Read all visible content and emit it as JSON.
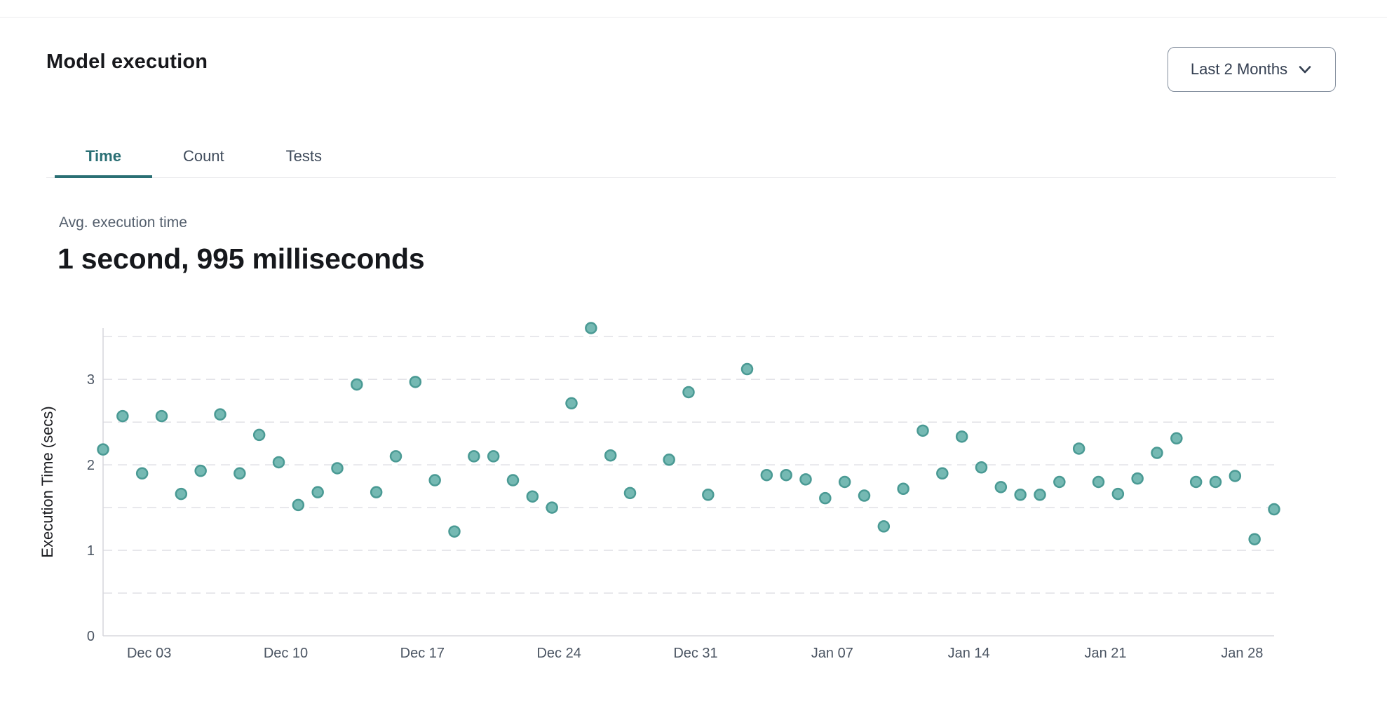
{
  "page": {
    "title": "Model execution"
  },
  "range_selector": {
    "label": "Last 2 Months",
    "icon": "chevron-down-icon"
  },
  "tabs": [
    {
      "label": "Time",
      "active": true
    },
    {
      "label": "Count",
      "active": false
    },
    {
      "label": "Tests",
      "active": false
    }
  ],
  "metric": {
    "label": "Avg. execution time",
    "value": "1 second, 995 milliseconds"
  },
  "chart_data": {
    "type": "scatter",
    "title": "",
    "xlabel": "",
    "ylabel": "Execution Time (secs)",
    "ylim": [
      0,
      3.6
    ],
    "ytick_values": [
      0,
      1,
      2,
      3
    ],
    "grid_step": 0.5,
    "grid": "dashed horizontal",
    "legend": "none",
    "x_total_days": 61,
    "xtick_labels": [
      "Dec 03",
      "Dec 10",
      "Dec 17",
      "Dec 24",
      "Dec 31",
      "Jan 07",
      "Jan 14",
      "Jan 21",
      "Jan 28"
    ],
    "xtick_day_indices": [
      2,
      9,
      16,
      23,
      30,
      37,
      44,
      51,
      58
    ],
    "colors": {
      "dot_fill": "#75b9b3",
      "dot_stroke": "#4a9a94",
      "grid": "#e3e3e8",
      "axis": "#d8d8dd",
      "tick_text": "#4a5462",
      "axis_title_text": "#1b1c20"
    },
    "points": [
      {
        "date": "Dec 01",
        "day_index": 0,
        "value": 2.18
      },
      {
        "date": "Dec 02",
        "day_index": 1,
        "value": 2.57
      },
      {
        "date": "Dec 03",
        "day_index": 2,
        "value": 1.9
      },
      {
        "date": "Dec 04",
        "day_index": 3,
        "value": 2.57
      },
      {
        "date": "Dec 05",
        "day_index": 4,
        "value": 1.66
      },
      {
        "date": "Dec 06",
        "day_index": 5,
        "value": 1.93
      },
      {
        "date": "Dec 07",
        "day_index": 6,
        "value": 2.59
      },
      {
        "date": "Dec 08",
        "day_index": 7,
        "value": 1.9
      },
      {
        "date": "Dec 09",
        "day_index": 8,
        "value": 2.35
      },
      {
        "date": "Dec 10",
        "day_index": 9,
        "value": 2.03
      },
      {
        "date": "Dec 11",
        "day_index": 10,
        "value": 1.53
      },
      {
        "date": "Dec 12",
        "day_index": 11,
        "value": 1.68
      },
      {
        "date": "Dec 13",
        "day_index": 12,
        "value": 1.96
      },
      {
        "date": "Dec 14",
        "day_index": 13,
        "value": 2.94
      },
      {
        "date": "Dec 15",
        "day_index": 14,
        "value": 1.68
      },
      {
        "date": "Dec 16",
        "day_index": 15,
        "value": 2.1
      },
      {
        "date": "Dec 17",
        "day_index": 16,
        "value": 2.97
      },
      {
        "date": "Dec 18",
        "day_index": 17,
        "value": 1.82
      },
      {
        "date": "Dec 19",
        "day_index": 18,
        "value": 1.22
      },
      {
        "date": "Dec 20",
        "day_index": 19,
        "value": 2.1
      },
      {
        "date": "Dec 21",
        "day_index": 20,
        "value": 2.1
      },
      {
        "date": "Dec 22",
        "day_index": 21,
        "value": 1.82
      },
      {
        "date": "Dec 23",
        "day_index": 22,
        "value": 1.63
      },
      {
        "date": "Dec 24",
        "day_index": 23,
        "value": 1.5
      },
      {
        "date": "Dec 25",
        "day_index": 24,
        "value": 2.72
      },
      {
        "date": "Dec 26",
        "day_index": 25,
        "value": 3.6
      },
      {
        "date": "Dec 27",
        "day_index": 26,
        "value": 2.11
      },
      {
        "date": "Dec 28",
        "day_index": 27,
        "value": 1.67
      },
      {
        "date": "Dec 30",
        "day_index": 29,
        "value": 2.06
      },
      {
        "date": "Dec 31",
        "day_index": 30,
        "value": 2.85
      },
      {
        "date": "Jan 01",
        "day_index": 31,
        "value": 1.65
      },
      {
        "date": "Jan 03",
        "day_index": 33,
        "value": 3.12
      },
      {
        "date": "Jan 04",
        "day_index": 34,
        "value": 1.88
      },
      {
        "date": "Jan 05",
        "day_index": 35,
        "value": 1.88
      },
      {
        "date": "Jan 06",
        "day_index": 36,
        "value": 1.83
      },
      {
        "date": "Jan 07",
        "day_index": 37,
        "value": 1.61
      },
      {
        "date": "Jan 08",
        "day_index": 38,
        "value": 1.8
      },
      {
        "date": "Jan 09",
        "day_index": 39,
        "value": 1.64
      },
      {
        "date": "Jan 10",
        "day_index": 40,
        "value": 1.28
      },
      {
        "date": "Jan 11",
        "day_index": 41,
        "value": 1.72
      },
      {
        "date": "Jan 12",
        "day_index": 42,
        "value": 2.4
      },
      {
        "date": "Jan 13",
        "day_index": 43,
        "value": 1.9
      },
      {
        "date": "Jan 14",
        "day_index": 44,
        "value": 2.33
      },
      {
        "date": "Jan 15",
        "day_index": 45,
        "value": 1.97
      },
      {
        "date": "Jan 16",
        "day_index": 46,
        "value": 1.74
      },
      {
        "date": "Jan 17",
        "day_index": 47,
        "value": 1.65
      },
      {
        "date": "Jan 18",
        "day_index": 48,
        "value": 1.65
      },
      {
        "date": "Jan 19",
        "day_index": 49,
        "value": 1.8
      },
      {
        "date": "Jan 20",
        "day_index": 50,
        "value": 2.19
      },
      {
        "date": "Jan 21",
        "day_index": 51,
        "value": 1.8
      },
      {
        "date": "Jan 22",
        "day_index": 52,
        "value": 1.66
      },
      {
        "date": "Jan 23",
        "day_index": 53,
        "value": 1.84
      },
      {
        "date": "Jan 24",
        "day_index": 54,
        "value": 2.14
      },
      {
        "date": "Jan 25",
        "day_index": 55,
        "value": 2.31
      },
      {
        "date": "Jan 26",
        "day_index": 56,
        "value": 1.8
      },
      {
        "date": "Jan 27",
        "day_index": 57,
        "value": 1.8
      },
      {
        "date": "Jan 28",
        "day_index": 58,
        "value": 1.87
      },
      {
        "date": "Jan 29",
        "day_index": 59,
        "value": 1.13
      },
      {
        "date": "Jan 30",
        "day_index": 60,
        "value": 1.48
      }
    ]
  }
}
